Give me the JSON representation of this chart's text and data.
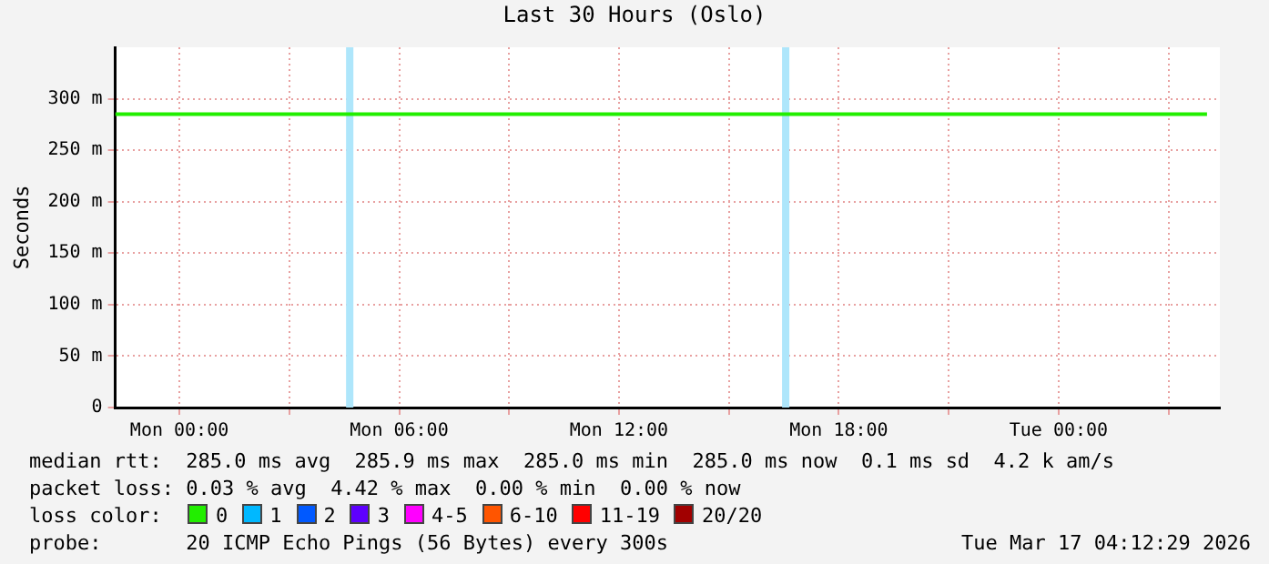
{
  "chart_data": {
    "type": "line",
    "title": "Last 30 Hours (Oslo)",
    "ylabel": "Seconds",
    "legend_title": "loss color:",
    "legend": "bottom",
    "grid": true,
    "marker": "none",
    "line_style": "solid",
    "x": [
      "2026-03-15T22:15",
      "2026-03-17T04:03"
    ],
    "xlim": [
      "2026-03-15T22:15",
      "2026-03-17T04:24"
    ],
    "xticks": [
      {
        "value": "2026-03-16T00:00",
        "label": "Mon 00:00"
      },
      {
        "value": "2026-03-16T03:00",
        "label": null
      },
      {
        "value": "2026-03-16T06:00",
        "label": "Mon 06:00"
      },
      {
        "value": "2026-03-16T09:00",
        "label": null
      },
      {
        "value": "2026-03-16T12:00",
        "label": "Mon 12:00"
      },
      {
        "value": "2026-03-16T15:00",
        "label": null
      },
      {
        "value": "2026-03-16T18:00",
        "label": "Mon 18:00"
      },
      {
        "value": "2026-03-16T21:00",
        "label": null
      },
      {
        "value": "2026-03-17T00:00",
        "label": "Tue 00:00"
      },
      {
        "value": "2026-03-17T03:00",
        "label": null
      }
    ],
    "ylim": [
      0,
      350
    ],
    "yticks": [
      0,
      {
        "value": 50,
        "label": "50 m"
      },
      {
        "value": 100,
        "label": "100 m"
      },
      {
        "value": 150,
        "label": "150 m"
      },
      {
        "value": 200,
        "label": "200 m"
      },
      {
        "value": 250,
        "label": "250 m"
      },
      {
        "value": 300,
        "label": "300 m"
      }
    ],
    "series": [
      {
        "name": "0",
        "color": "#22ee00",
        "values": [
          285,
          285
        ]
      },
      {
        "name": "1",
        "color": "#00b8ff",
        "values": [
          null,
          null
        ]
      },
      {
        "name": "2",
        "color": "#0059ff",
        "values": [
          null,
          null
        ]
      },
      {
        "name": "3",
        "color": "#5e00ff",
        "values": [
          null,
          null
        ]
      },
      {
        "name": "4-5",
        "color": "#ff00ff",
        "values": [
          null,
          null
        ]
      },
      {
        "name": "6-10",
        "color": "#ff5500",
        "values": [
          null,
          null
        ]
      },
      {
        "name": "11-19",
        "color": "#ff0000",
        "values": [
          null,
          null
        ]
      },
      {
        "name": "20/20",
        "color": "#a10000",
        "values": [
          null,
          null
        ]
      }
    ],
    "bands": [
      {
        "axis": "x",
        "from": "2026-03-16T04:33",
        "to": "2026-03-16T04:45",
        "color": "#aee6fb"
      },
      {
        "axis": "x",
        "from": "2026-03-16T16:27",
        "to": "2026-03-16T16:39",
        "color": "#aee6fb"
      }
    ],
    "annotations": [
      "median rtt:  285.0 ms avg  285.9 ms max  285.0 ms min  285.0 ms now  0.1 ms sd  4.2 k am/s",
      "packet loss: 0.03 % avg  4.42 % max  0.00 % min  0.00 % now",
      "probe:       20 ICMP Echo Pings (56 Bytes) every 300s",
      "Tue Mar 17 04:12:29 2026"
    ]
  }
}
